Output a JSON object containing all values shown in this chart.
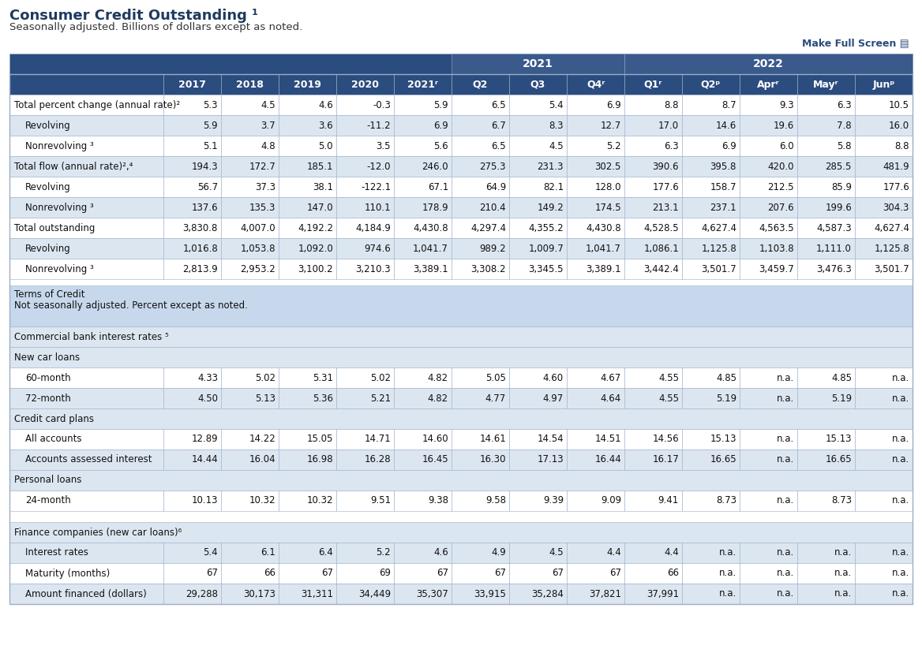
{
  "title": "Consumer Credit Outstanding ¹",
  "subtitle": "Seasonally adjusted. Billions of dollars except as noted.",
  "header_bg": "#2B4C7E",
  "header_text": "#FFFFFF",
  "row_light": "#DCE6F1",
  "row_white": "#FFFFFF",
  "section_bg": "#C8D8EC",
  "border_color": "#9AAEC8",
  "col_labels": [
    "2017",
    "2018",
    "2019",
    "2020",
    "2021ʳ",
    "Q2",
    "Q3",
    "Q4ʳ",
    "Q1ʳ",
    "Q2ᵖ",
    "Aprʳ",
    "Mayʳ",
    "Junᵖ"
  ],
  "data_rows": [
    {
      "label": "Total percent change (annual rate)²",
      "indent": 0,
      "values": [
        "5.3",
        "4.5",
        "4.6",
        "-0.3",
        "5.9",
        "6.5",
        "5.4",
        "6.9",
        "8.8",
        "8.7",
        "9.3",
        "6.3",
        "10.5"
      ],
      "bg": "white"
    },
    {
      "label": "Revolving",
      "indent": 1,
      "values": [
        "5.9",
        "3.7",
        "3.6",
        "-11.2",
        "6.9",
        "6.7",
        "8.3",
        "12.7",
        "17.0",
        "14.6",
        "19.6",
        "7.8",
        "16.0"
      ],
      "bg": "light"
    },
    {
      "label": "Nonrevolving ³",
      "indent": 1,
      "values": [
        "5.1",
        "4.8",
        "5.0",
        "3.5",
        "5.6",
        "6.5",
        "4.5",
        "5.2",
        "6.3",
        "6.9",
        "6.0",
        "5.8",
        "8.8"
      ],
      "bg": "white"
    },
    {
      "label": "Total flow (annual rate)²,⁴",
      "indent": 0,
      "values": [
        "194.3",
        "172.7",
        "185.1",
        "-12.0",
        "246.0",
        "275.3",
        "231.3",
        "302.5",
        "390.6",
        "395.8",
        "420.0",
        "285.5",
        "481.9"
      ],
      "bg": "light"
    },
    {
      "label": "Revolving",
      "indent": 1,
      "values": [
        "56.7",
        "37.3",
        "38.1",
        "-122.1",
        "67.1",
        "64.9",
        "82.1",
        "128.0",
        "177.6",
        "158.7",
        "212.5",
        "85.9",
        "177.6"
      ],
      "bg": "white"
    },
    {
      "label": "Nonrevolving ³",
      "indent": 1,
      "values": [
        "137.6",
        "135.3",
        "147.0",
        "110.1",
        "178.9",
        "210.4",
        "149.2",
        "174.5",
        "213.1",
        "237.1",
        "207.6",
        "199.6",
        "304.3"
      ],
      "bg": "light"
    },
    {
      "label": "Total outstanding",
      "indent": 0,
      "values": [
        "3,830.8",
        "4,007.0",
        "4,192.2",
        "4,184.9",
        "4,430.8",
        "4,297.4",
        "4,355.2",
        "4,430.8",
        "4,528.5",
        "4,627.4",
        "4,563.5",
        "4,587.3",
        "4,627.4"
      ],
      "bg": "white"
    },
    {
      "label": "Revolving",
      "indent": 1,
      "values": [
        "1,016.8",
        "1,053.8",
        "1,092.0",
        "974.6",
        "1,041.7",
        "989.2",
        "1,009.7",
        "1,041.7",
        "1,086.1",
        "1,125.8",
        "1,103.8",
        "1,111.0",
        "1,125.8"
      ],
      "bg": "light"
    },
    {
      "label": "Nonrevolving ³",
      "indent": 1,
      "values": [
        "2,813.9",
        "2,953.2",
        "3,100.2",
        "3,210.3",
        "3,389.1",
        "3,308.2",
        "3,345.5",
        "3,389.1",
        "3,442.4",
        "3,501.7",
        "3,459.7",
        "3,476.3",
        "3,501.7"
      ],
      "bg": "white"
    }
  ],
  "section_rows": [
    {
      "type": "section_header",
      "lines": [
        "Terms of Credit",
        "Not seasonally adjusted. Percent except as noted."
      ]
    },
    {
      "type": "category",
      "label": "Commercial bank interest rates ⁵"
    },
    {
      "type": "subcategory",
      "label": "New car loans"
    },
    {
      "type": "data",
      "label": "60-month",
      "indent": 1,
      "values": [
        "4.33",
        "5.02",
        "5.31",
        "5.02",
        "4.82",
        "5.05",
        "4.60",
        "4.67",
        "4.55",
        "4.85",
        "n.a.",
        "4.85",
        "n.a."
      ],
      "bg": "white"
    },
    {
      "type": "data",
      "label": "72-month",
      "indent": 1,
      "values": [
        "4.50",
        "5.13",
        "5.36",
        "5.21",
        "4.82",
        "4.77",
        "4.97",
        "4.64",
        "4.55",
        "5.19",
        "n.a.",
        "5.19",
        "n.a."
      ],
      "bg": "light"
    },
    {
      "type": "subcategory",
      "label": "Credit card plans"
    },
    {
      "type": "data",
      "label": "All accounts",
      "indent": 1,
      "values": [
        "12.89",
        "14.22",
        "15.05",
        "14.71",
        "14.60",
        "14.61",
        "14.54",
        "14.51",
        "14.56",
        "15.13",
        "n.a.",
        "15.13",
        "n.a."
      ],
      "bg": "white"
    },
    {
      "type": "data",
      "label": "Accounts assessed interest",
      "indent": 1,
      "values": [
        "14.44",
        "16.04",
        "16.98",
        "16.28",
        "16.45",
        "16.30",
        "17.13",
        "16.44",
        "16.17",
        "16.65",
        "n.a.",
        "16.65",
        "n.a."
      ],
      "bg": "light"
    },
    {
      "type": "subcategory",
      "label": "Personal loans"
    },
    {
      "type": "data",
      "label": "24-month",
      "indent": 1,
      "values": [
        "10.13",
        "10.32",
        "10.32",
        "9.51",
        "9.38",
        "9.58",
        "9.39",
        "9.09",
        "9.41",
        "8.73",
        "n.a.",
        "8.73",
        "n.a."
      ],
      "bg": "white"
    },
    {
      "type": "spacer"
    },
    {
      "type": "category",
      "label": "Finance companies (new car loans)⁶"
    },
    {
      "type": "data",
      "label": "Interest rates",
      "indent": 1,
      "values": [
        "5.4",
        "6.1",
        "6.4",
        "5.2",
        "4.6",
        "4.9",
        "4.5",
        "4.4",
        "4.4",
        "n.a.",
        "n.a.",
        "n.a.",
        "n.a."
      ],
      "bg": "light"
    },
    {
      "type": "data",
      "label": "Maturity (months)",
      "indent": 1,
      "values": [
        "67",
        "66",
        "67",
        "69",
        "67",
        "67",
        "67",
        "67",
        "66",
        "n.a.",
        "n.a.",
        "n.a.",
        "n.a."
      ],
      "bg": "white"
    },
    {
      "type": "data",
      "label": "Amount financed (dollars)",
      "indent": 1,
      "values": [
        "29,288",
        "30,173",
        "31,311",
        "34,449",
        "35,307",
        "33,915",
        "35,284",
        "37,821",
        "37,991",
        "n.a.",
        "n.a.",
        "n.a.",
        "n.a."
      ],
      "bg": "light"
    }
  ]
}
